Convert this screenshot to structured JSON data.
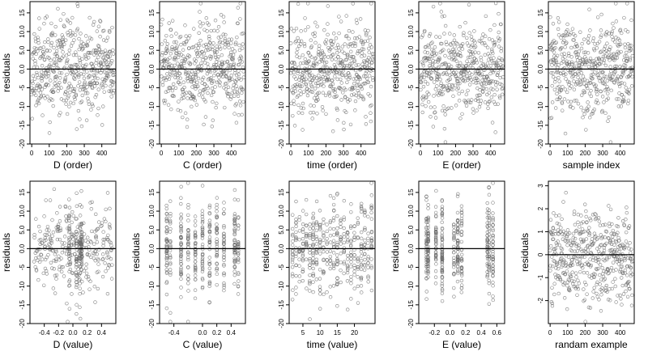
{
  "chart_data": [
    {
      "type": "scatter",
      "xlabel": "D (order)",
      "ylabel": "residuals",
      "xlim": [
        -10,
        480
      ],
      "ylim": [
        -20,
        18
      ],
      "xticks": [
        0,
        100,
        200,
        300,
        400
      ],
      "xtick_labels": [
        "0",
        "100",
        "200",
        "300",
        "400"
      ],
      "yticks": [
        -20,
        -15,
        -10,
        -5,
        0,
        5,
        10,
        15
      ],
      "ytick_labels": [
        "-20",
        "-15",
        "-10",
        "-5",
        "0.0",
        "5.0",
        "10.0",
        "15"
      ],
      "hline": 0,
      "n_points": 480,
      "x_generation": "uniform",
      "x_range": [
        0,
        470
      ],
      "y_sd": 6,
      "seed": 11
    },
    {
      "type": "scatter",
      "xlabel": "C (order)",
      "ylabel": "residuals",
      "xlim": [
        -10,
        480
      ],
      "ylim": [
        -20,
        18
      ],
      "xticks": [
        0,
        100,
        200,
        300,
        400
      ],
      "xtick_labels": [
        "0",
        "100",
        "200",
        "300",
        "400"
      ],
      "yticks": [
        -20,
        -15,
        -10,
        -5,
        0,
        5,
        10,
        15
      ],
      "ytick_labels": [
        "-20",
        "-15",
        "-10",
        "-5",
        "0.0",
        "5.0",
        "10.0",
        "15"
      ],
      "hline": 0,
      "n_points": 480,
      "x_generation": "uniform",
      "x_range": [
        0,
        470
      ],
      "y_sd": 6,
      "seed": 23
    },
    {
      "type": "scatter",
      "xlabel": "time (order)",
      "ylabel": "residuals",
      "xlim": [
        -10,
        480
      ],
      "ylim": [
        -20,
        18
      ],
      "xticks": [
        0,
        100,
        200,
        300,
        400
      ],
      "xtick_labels": [
        "0",
        "100",
        "200",
        "300",
        "400"
      ],
      "yticks": [
        -20,
        -15,
        -10,
        -5,
        0,
        5,
        10,
        15
      ],
      "ytick_labels": [
        "-20",
        "-15",
        "-10",
        "-5",
        "0.0",
        "5.0",
        "10.0",
        "15"
      ],
      "hline": 0,
      "n_points": 480,
      "x_generation": "uniform",
      "x_range": [
        0,
        470
      ],
      "y_sd": 6,
      "seed": 37
    },
    {
      "type": "scatter",
      "xlabel": "E (order)",
      "ylabel": "residuals",
      "xlim": [
        -10,
        480
      ],
      "ylim": [
        -20,
        18
      ],
      "xticks": [
        0,
        100,
        200,
        300,
        400
      ],
      "xtick_labels": [
        "0",
        "100",
        "200",
        "300",
        "400"
      ],
      "yticks": [
        -20,
        -15,
        -10,
        -5,
        0,
        5,
        10,
        15
      ],
      "ytick_labels": [
        "-20",
        "-15",
        "-10",
        "-5",
        "0.0",
        "5.0",
        "10.0",
        "15"
      ],
      "hline": 0,
      "n_points": 480,
      "x_generation": "uniform",
      "x_range": [
        0,
        470
      ],
      "y_sd": 6,
      "seed": 41
    },
    {
      "type": "scatter",
      "xlabel": "sample index",
      "ylabel": "residuals",
      "xlim": [
        -10,
        480
      ],
      "ylim": [
        -20,
        18
      ],
      "xticks": [
        0,
        100,
        200,
        300,
        400
      ],
      "xtick_labels": [
        "0",
        "100",
        "200",
        "300",
        "400"
      ],
      "yticks": [
        -20,
        -15,
        -10,
        -5,
        0,
        5,
        10,
        15
      ],
      "ytick_labels": [
        "-20",
        "-15",
        "-10",
        "-5",
        "0.0",
        "5.0",
        "10.0",
        "15"
      ],
      "hline": 0,
      "n_points": 480,
      "x_generation": "uniform",
      "x_range": [
        0,
        470
      ],
      "y_sd": 6,
      "seed": 53
    },
    {
      "type": "scatter",
      "xlabel": "D (value)",
      "ylabel": "residuals",
      "xlim": [
        -0.6,
        0.6
      ],
      "ylim": [
        -20,
        18
      ],
      "xticks": [
        -0.4,
        -0.2,
        0,
        0.2,
        0.4
      ],
      "xtick_labels": [
        "-0.4",
        "-0.2",
        "0.0",
        "0.2",
        "0.4"
      ],
      "yticks": [
        -20,
        -15,
        -10,
        -5,
        0,
        5,
        10,
        15
      ],
      "ytick_labels": [
        "-20",
        "-15",
        "-10",
        "-5",
        "0.0",
        "5.0",
        "10.0",
        "15"
      ],
      "hline": 0,
      "n_points": 420,
      "x_generation": "uniform_with_clusters",
      "x_range": [
        -0.55,
        0.55
      ],
      "x_clusters": [
        -0.05,
        0.05,
        0.1,
        0.12
      ],
      "y_sd": 6,
      "seed": 61
    },
    {
      "type": "scatter",
      "xlabel": "C (value)",
      "ylabel": "residuals",
      "xlim": [
        -0.6,
        0.6
      ],
      "ylim": [
        -20,
        18
      ],
      "xticks": [
        -0.4,
        0,
        0.2,
        0.4
      ],
      "xtick_labels": [
        "-0.4",
        "0.0",
        "0.2",
        "0.4"
      ],
      "yticks": [
        -20,
        -15,
        -10,
        -5,
        0,
        5,
        10,
        15
      ],
      "ytick_labels": [
        "-20",
        "-15",
        "-10",
        "-5",
        "0.0",
        "5.0",
        "10.0",
        "15"
      ],
      "hline": 0,
      "n_points": 420,
      "x_generation": "clustered",
      "x_clusters": [
        -0.45,
        -0.5,
        -0.3,
        -0.2,
        -0.1,
        0.0,
        0.1,
        0.2,
        0.3,
        0.45,
        0.5
      ],
      "y_sd": 6,
      "seed": 73
    },
    {
      "type": "scatter",
      "xlabel": "time (value)",
      "ylabel": "residuals",
      "xlim": [
        1,
        26
      ],
      "ylim": [
        -20,
        18
      ],
      "xticks": [
        5,
        10,
        15,
        20
      ],
      "xtick_labels": [
        "5",
        "10",
        "15",
        "20"
      ],
      "yticks": [
        -20,
        -15,
        -10,
        -5,
        0,
        5,
        10,
        15
      ],
      "ytick_labels": [
        "-20",
        "-15",
        "-10",
        "-5",
        "0.0",
        "5.0",
        "10.0",
        "15"
      ],
      "hline": 0,
      "n_points": 420,
      "x_generation": "clustered",
      "x_clusters": [
        2,
        3,
        4,
        5,
        6,
        7,
        8,
        9,
        10,
        11,
        12,
        13,
        14,
        15,
        16,
        17,
        18,
        19,
        20,
        21,
        22,
        23,
        24,
        25
      ],
      "y_sd": 6,
      "seed": 89
    },
    {
      "type": "scatter",
      "xlabel": "E (value)",
      "ylabel": "residuals",
      "xlim": [
        -0.4,
        0.7
      ],
      "ylim": [
        -20,
        18
      ],
      "xticks": [
        -0.2,
        0,
        0.2,
        0.4,
        0.6
      ],
      "xtick_labels": [
        "-0.2",
        "0.0",
        "0.2",
        "0.4",
        "0.6"
      ],
      "yticks": [
        -20,
        -15,
        -10,
        -5,
        0,
        5,
        10,
        15
      ],
      "ytick_labels": [
        "-20",
        "-15",
        "-10",
        "-5",
        "0.0",
        "5.0",
        "10.0",
        "15"
      ],
      "hline": 0,
      "n_points": 420,
      "x_generation": "clustered",
      "x_clusters": [
        -0.3,
        -0.28,
        -0.18,
        -0.1,
        0.05,
        0.1,
        0.15,
        0.48,
        0.5,
        0.55
      ],
      "y_sd": 6,
      "seed": 97
    },
    {
      "type": "scatter",
      "xlabel": "randam example",
      "ylabel": "residuals",
      "xlim": [
        -10,
        480
      ],
      "ylim": [
        -3,
        3.2
      ],
      "xticks": [
        0,
        100,
        200,
        300,
        400
      ],
      "xtick_labels": [
        "0",
        "100",
        "200",
        "300",
        "400"
      ],
      "yticks": [
        -2,
        -1,
        0,
        1,
        2,
        3
      ],
      "ytick_labels": [
        "-2",
        "-1",
        "0",
        "1",
        "2",
        "3"
      ],
      "hline": 0,
      "n_points": 480,
      "x_generation": "uniform",
      "x_range": [
        0,
        470
      ],
      "y_sd": 1,
      "seed": 101
    }
  ],
  "colors": {
    "points": "#6b6b6b",
    "axes": "#000000",
    "background": "#ffffff"
  }
}
